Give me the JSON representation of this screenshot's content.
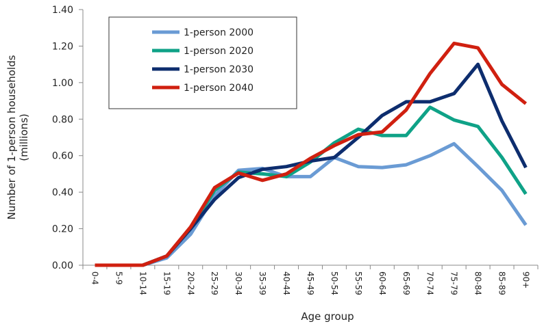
{
  "chart_data": {
    "type": "line",
    "xlabel": "Age group",
    "ylabel": [
      "Number of  1-person households",
      "(millions)"
    ],
    "ylim": [
      0,
      1.4
    ],
    "y_ticks": [
      "0.00",
      "0.20",
      "0.40",
      "0.60",
      "0.80",
      "1.00",
      "1.20",
      "1.40"
    ],
    "grid": false,
    "legend_position": "top-left",
    "categories": [
      "0-4",
      "5-9",
      "10-14",
      "15-19",
      "20-24",
      "25-29",
      "30-34",
      "35-39",
      "40-44",
      "45-49",
      "50-54",
      "55-59",
      "60-64",
      "65-69",
      "70-74",
      "75-79",
      "80-84",
      "85-89",
      "90+"
    ],
    "series": [
      {
        "name": "1-person 2000",
        "color": "#6A9BD4",
        "values": [
          0,
          0,
          0,
          0.04,
          0.17,
          0.38,
          0.52,
          0.53,
          0.485,
          0.485,
          0.59,
          0.54,
          0.535,
          0.55,
          0.6,
          0.665,
          0.54,
          0.41,
          0.22
        ]
      },
      {
        "name": "1-person 2020",
        "color": "#0FA287",
        "values": [
          0,
          0,
          0,
          0.05,
          0.2,
          0.41,
          0.51,
          0.5,
          0.485,
          0.565,
          0.67,
          0.745,
          0.71,
          0.71,
          0.865,
          0.795,
          0.76,
          0.59,
          0.39
        ]
      },
      {
        "name": "1-person 2030",
        "color": "#0D2D6E",
        "values": [
          0,
          0,
          0,
          0.05,
          0.2,
          0.36,
          0.48,
          0.525,
          0.54,
          0.57,
          0.59,
          0.7,
          0.82,
          0.895,
          0.895,
          0.94,
          1.1,
          0.79,
          0.535
        ]
      },
      {
        "name": "1-person 2040",
        "color": "#D02010",
        "values": [
          0,
          0,
          0,
          0.05,
          0.21,
          0.425,
          0.505,
          0.465,
          0.5,
          0.585,
          0.655,
          0.715,
          0.73,
          0.85,
          1.05,
          1.215,
          1.19,
          0.99,
          0.885
        ]
      }
    ]
  }
}
